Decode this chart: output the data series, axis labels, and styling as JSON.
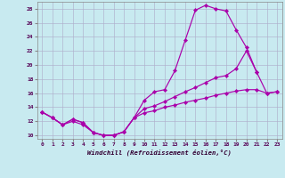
{
  "background_color": "#c8eaf0",
  "grid_color": "#b0b0cc",
  "line_color": "#aa00aa",
  "marker": "D",
  "marker_size": 2.2,
  "xlabel": "Windchill (Refroidissement éolien,°C)",
  "xlim": [
    -0.5,
    23.5
  ],
  "ylim": [
    9.5,
    29.0
  ],
  "yticks": [
    10,
    12,
    14,
    16,
    18,
    20,
    22,
    24,
    26,
    28
  ],
  "xticks": [
    0,
    1,
    2,
    3,
    4,
    5,
    6,
    7,
    8,
    9,
    10,
    11,
    12,
    13,
    14,
    15,
    16,
    17,
    18,
    19,
    20,
    21,
    22,
    23
  ],
  "curves": [
    {
      "x": [
        0,
        1,
        2,
        3,
        4,
        5,
        6,
        7,
        8,
        9,
        10,
        11,
        12,
        13,
        14,
        15,
        16,
        17,
        18,
        19,
        20,
        21
      ],
      "y": [
        13.3,
        12.5,
        11.5,
        12.3,
        11.8,
        10.4,
        10.0,
        10.0,
        10.5,
        12.5,
        15.0,
        16.2,
        16.5,
        19.2,
        23.5,
        27.8,
        28.5,
        28.0,
        27.7,
        25.0,
        22.5,
        19.0
      ]
    },
    {
      "x": [
        0,
        1,
        2,
        3,
        4,
        5,
        6,
        7,
        8,
        9,
        10,
        11,
        12,
        13,
        14,
        15,
        16,
        17,
        18,
        19,
        20,
        21,
        22,
        23
      ],
      "y": [
        13.3,
        12.5,
        11.5,
        12.3,
        11.8,
        10.4,
        10.0,
        10.0,
        10.5,
        12.5,
        13.2,
        13.5,
        14.0,
        14.3,
        14.7,
        15.0,
        15.3,
        15.7,
        16.0,
        16.3,
        16.5,
        16.5,
        16.0,
        16.2
      ]
    },
    {
      "x": [
        0,
        1,
        2,
        3,
        4,
        5,
        6,
        7,
        8,
        9,
        10,
        11,
        12,
        13,
        14,
        15,
        16,
        17,
        18,
        19,
        20,
        21,
        22,
        23
      ],
      "y": [
        13.3,
        12.5,
        11.5,
        12.0,
        11.5,
        10.4,
        10.0,
        10.0,
        10.5,
        12.5,
        13.8,
        14.2,
        14.8,
        15.5,
        16.2,
        16.8,
        17.5,
        18.2,
        18.5,
        19.5,
        22.0,
        19.0,
        16.0,
        16.2
      ]
    }
  ]
}
